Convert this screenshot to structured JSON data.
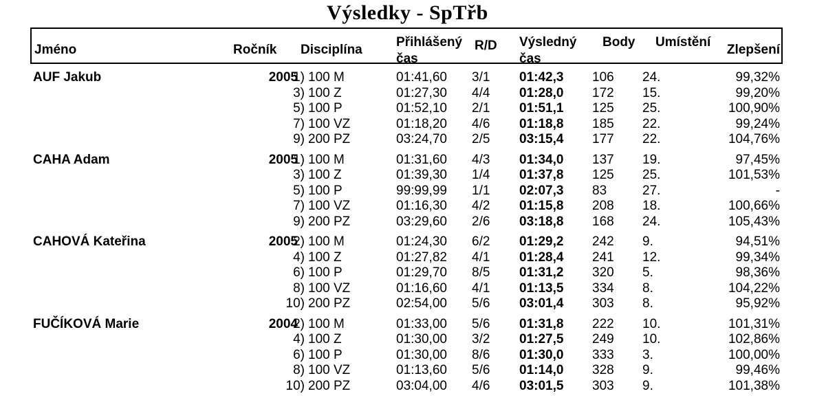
{
  "title": "Výsledky - SpTřb",
  "headers": {
    "name": "Jméno",
    "year": "Ročník",
    "discipline": "Disciplína",
    "entry_time": "Přihlášený\nčas",
    "rd": "R/D",
    "result_time": "Výsledný\nčas",
    "points": "Body",
    "place": "Umístění",
    "improvement": "Zlepšení"
  },
  "athletes": [
    {
      "name": "AUF Jakub",
      "year": "2005",
      "rows": [
        {
          "num": "1)",
          "event": "100 M",
          "entry": "01:41,60",
          "rd": "3/1",
          "result": "01:42,3",
          "points": "106",
          "place": "24.",
          "improvement": "99,32%"
        },
        {
          "num": "3)",
          "event": "100 Z",
          "entry": "01:27,30",
          "rd": "4/4",
          "result": "01:28,0",
          "points": "172",
          "place": "15.",
          "improvement": "99,20%"
        },
        {
          "num": "5)",
          "event": "100 P",
          "entry": "01:52,10",
          "rd": "2/1",
          "result": "01:51,1",
          "points": "125",
          "place": "25.",
          "improvement": "100,90%"
        },
        {
          "num": "7)",
          "event": "100 VZ",
          "entry": "01:18,20",
          "rd": "4/6",
          "result": "01:18,8",
          "points": "185",
          "place": "22.",
          "improvement": "99,24%"
        },
        {
          "num": "9)",
          "event": "200 PZ",
          "entry": "03:24,70",
          "rd": "2/5",
          "result": "03:15,4",
          "points": "177",
          "place": "22.",
          "improvement": "104,76%"
        }
      ]
    },
    {
      "name": "CAHA Adam",
      "year": "2005",
      "rows": [
        {
          "num": "1)",
          "event": "100 M",
          "entry": "01:31,60",
          "rd": "4/3",
          "result": "01:34,0",
          "points": "137",
          "place": "19.",
          "improvement": "97,45%"
        },
        {
          "num": "3)",
          "event": "100 Z",
          "entry": "01:39,30",
          "rd": "1/4",
          "result": "01:37,8",
          "points": "125",
          "place": "25.",
          "improvement": "101,53%"
        },
        {
          "num": "5)",
          "event": "100 P",
          "entry": "99:99,99",
          "rd": "1/1",
          "result": "02:07,3",
          "points": "83",
          "place": "27.",
          "improvement": "-"
        },
        {
          "num": "7)",
          "event": "100 VZ",
          "entry": "01:16,30",
          "rd": "4/2",
          "result": "01:15,8",
          "points": "208",
          "place": "18.",
          "improvement": "100,66%"
        },
        {
          "num": "9)",
          "event": "200 PZ",
          "entry": "03:29,60",
          "rd": "2/6",
          "result": "03:18,8",
          "points": "168",
          "place": "24.",
          "improvement": "105,43%"
        }
      ]
    },
    {
      "name": "CAHOVÁ Kateřina",
      "year": "2005",
      "rows": [
        {
          "num": "2)",
          "event": "100 M",
          "entry": "01:24,30",
          "rd": "6/2",
          "result": "01:29,2",
          "points": "242",
          "place": "9.",
          "improvement": "94,51%"
        },
        {
          "num": "4)",
          "event": "100 Z",
          "entry": "01:27,82",
          "rd": "4/1",
          "result": "01:28,4",
          "points": "241",
          "place": "12.",
          "improvement": "99,34%"
        },
        {
          "num": "6)",
          "event": "100 P",
          "entry": "01:29,70",
          "rd": "8/5",
          "result": "01:31,2",
          "points": "320",
          "place": "5.",
          "improvement": "98,36%"
        },
        {
          "num": "8)",
          "event": "100 VZ",
          "entry": "01:16,60",
          "rd": "4/1",
          "result": "01:13,5",
          "points": "334",
          "place": "8.",
          "improvement": "104,22%"
        },
        {
          "num": "10)",
          "event": "200 PZ",
          "entry": "02:54,00",
          "rd": "5/6",
          "result": "03:01,4",
          "points": "303",
          "place": "8.",
          "improvement": "95,92%"
        }
      ]
    },
    {
      "name": "FUČÍKOVÁ Marie",
      "year": "2004",
      "rows": [
        {
          "num": "2)",
          "event": "100 M",
          "entry": "01:33,00",
          "rd": "5/6",
          "result": "01:31,8",
          "points": "222",
          "place": "10.",
          "improvement": "101,31%"
        },
        {
          "num": "4)",
          "event": "100 Z",
          "entry": "01:30,00",
          "rd": "3/2",
          "result": "01:27,5",
          "points": "249",
          "place": "10.",
          "improvement": "102,86%"
        },
        {
          "num": "6)",
          "event": "100 P",
          "entry": "01:30,00",
          "rd": "8/6",
          "result": "01:30,0",
          "points": "333",
          "place": "3.",
          "improvement": "100,00%"
        },
        {
          "num": "8)",
          "event": "100 VZ",
          "entry": "01:13,60",
          "rd": "5/6",
          "result": "01:14,0",
          "points": "328",
          "place": "9.",
          "improvement": "99,46%"
        },
        {
          "num": "10)",
          "event": "200 PZ",
          "entry": "03:04,00",
          "rd": "4/6",
          "result": "03:01,5",
          "points": "303",
          "place": "9.",
          "improvement": "101,38%"
        }
      ]
    }
  ]
}
